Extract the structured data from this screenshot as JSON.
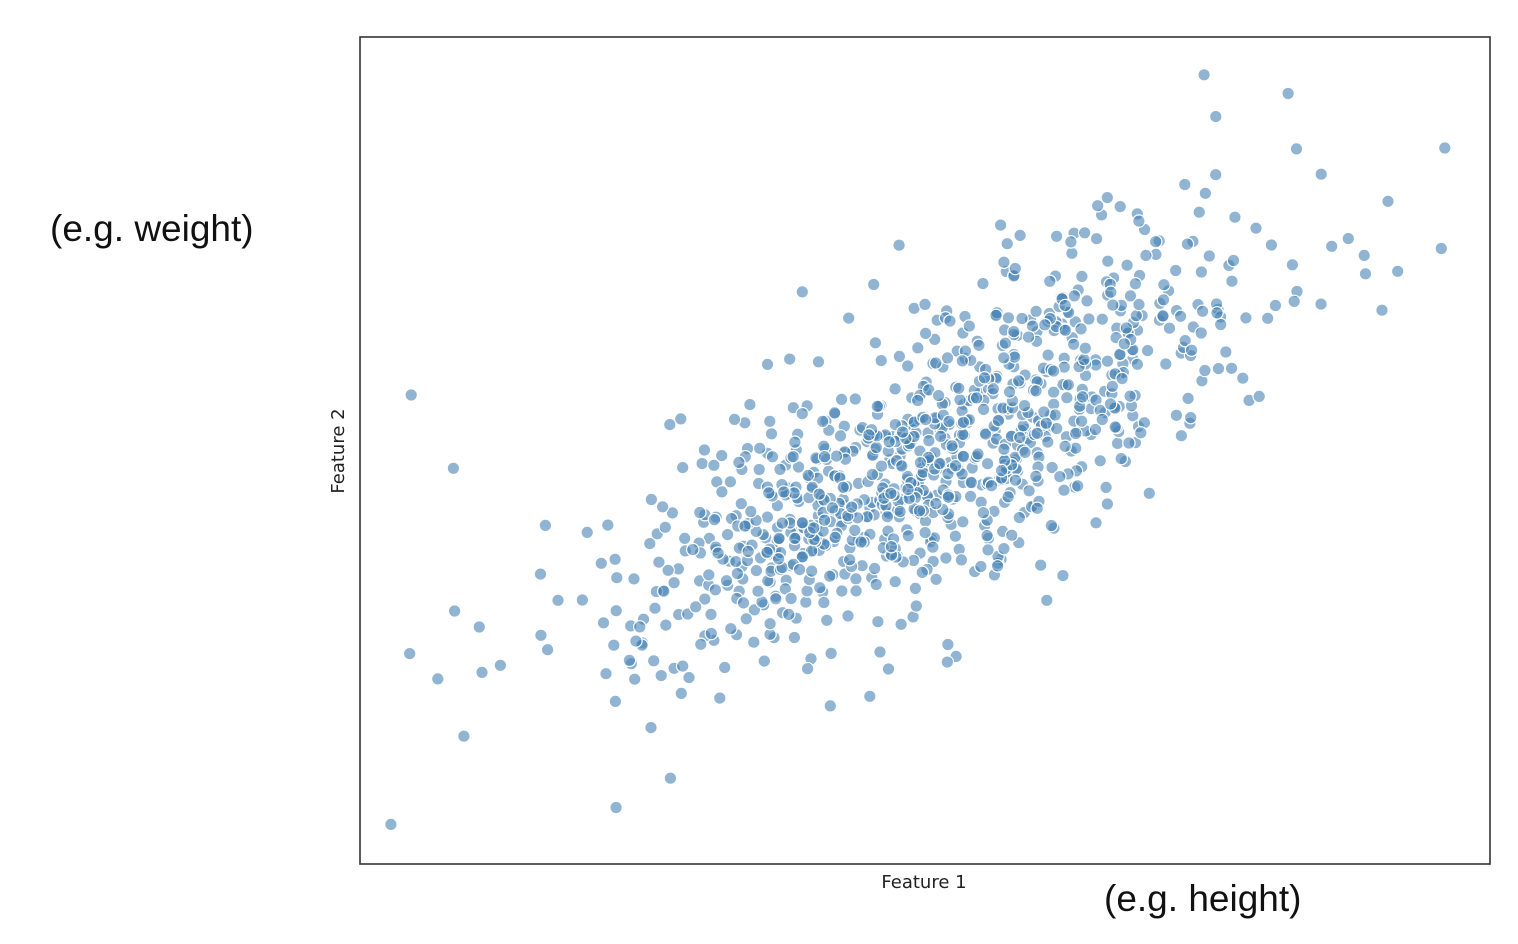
{
  "chart_data": {
    "type": "scatter",
    "title": "",
    "xlabel": "Feature 1",
    "ylabel": "Feature 2",
    "xlim": [
      -3.8,
      3.7
    ],
    "ylim": [
      -3.95,
      3.95
    ],
    "grid": false,
    "legend": "none",
    "ticks": "hidden",
    "point_color": "#4682B4",
    "point_alpha": 0.6,
    "n_points": 1000,
    "correlation": 0.75,
    "distribution": "bivariate normal, mean [0, 0], unit variance",
    "seed": 7,
    "notable_points": [
      {
        "x": 2.36,
        "y": 3.41
      },
      {
        "x": 1.88,
        "y": 3.19
      },
      {
        "x": 3.4,
        "y": 2.89
      },
      {
        "x": 1.01,
        "y": 2.08
      },
      {
        "x": -3.46,
        "y": 0.53
      },
      {
        "x": -3.18,
        "y": -0.17
      },
      {
        "x": -3.47,
        "y": -1.94
      },
      {
        "x": -2.1,
        "y": -3.41
      },
      {
        "x": -2.99,
        "y": -2.12
      },
      {
        "x": -1.74,
        "y": -3.13
      }
    ]
  },
  "annotations": {
    "left": "(e.g. weight)",
    "bottom": "(e.g. height)"
  }
}
